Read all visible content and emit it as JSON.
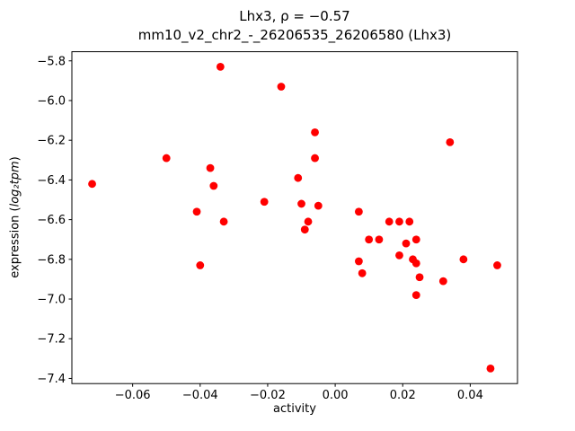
{
  "figure": {
    "title_line1": "Lhx3, ρ = −0.57",
    "title_line2": "mm10_v2_chr2_-_26206535_26206580 (Lhx3)",
    "xlabel": "activity",
    "ylabel_prefix": "expression (",
    "ylabel_math": "log₂tpm",
    "ylabel_suffix": ")"
  },
  "chart_data": {
    "type": "scatter",
    "title": "Lhx3, ρ = −0.57 — mm10_v2_chr2_-_26206535_26206580 (Lhx3)",
    "xlabel": "activity",
    "ylabel": "expression (log2 tpm)",
    "marker_color": "#ff0000",
    "axis_color": "#000000",
    "xlim": [
      -0.078,
      0.054
    ],
    "ylim": [
      -7.426,
      -5.754
    ],
    "xticks": {
      "values": [
        -0.06,
        -0.04,
        -0.02,
        0.0,
        0.02,
        0.04
      ],
      "labels": [
        "−0.06",
        "−0.04",
        "−0.02",
        "0.00",
        "0.02",
        "0.04"
      ]
    },
    "yticks": {
      "values": [
        -5.8,
        -6.0,
        -6.2,
        -6.4,
        -6.6,
        -6.8,
        -7.0,
        -7.2,
        -7.4
      ],
      "labels": [
        "−5.8",
        "−6.0",
        "−6.2",
        "−6.4",
        "−6.6",
        "−6.8",
        "−7.0",
        "−7.2",
        "−7.4"
      ]
    },
    "points": [
      [
        -0.072,
        -6.42
      ],
      [
        -0.05,
        -6.29
      ],
      [
        -0.041,
        -6.56
      ],
      [
        -0.04,
        -6.83
      ],
      [
        -0.037,
        -6.34
      ],
      [
        -0.036,
        -6.43
      ],
      [
        -0.034,
        -5.83
      ],
      [
        -0.033,
        -6.61
      ],
      [
        -0.021,
        -6.51
      ],
      [
        -0.016,
        -5.93
      ],
      [
        -0.011,
        -6.39
      ],
      [
        -0.01,
        -6.52
      ],
      [
        -0.009,
        -6.65
      ],
      [
        -0.008,
        -6.61
      ],
      [
        -0.006,
        -6.16
      ],
      [
        -0.006,
        -6.29
      ],
      [
        -0.005,
        -6.53
      ],
      [
        0.007,
        -6.56
      ],
      [
        0.007,
        -6.81
      ],
      [
        0.008,
        -6.87
      ],
      [
        0.01,
        -6.7
      ],
      [
        0.013,
        -6.7
      ],
      [
        0.016,
        -6.61
      ],
      [
        0.019,
        -6.61
      ],
      [
        0.019,
        -6.78
      ],
      [
        0.021,
        -6.72
      ],
      [
        0.022,
        -6.61
      ],
      [
        0.023,
        -6.8
      ],
      [
        0.024,
        -6.7
      ],
      [
        0.024,
        -6.82
      ],
      [
        0.025,
        -6.89
      ],
      [
        0.024,
        -6.98
      ],
      [
        0.032,
        -6.91
      ],
      [
        0.034,
        -6.21
      ],
      [
        0.038,
        -6.8
      ],
      [
        0.046,
        -7.35
      ],
      [
        0.048,
        -6.83
      ]
    ]
  }
}
